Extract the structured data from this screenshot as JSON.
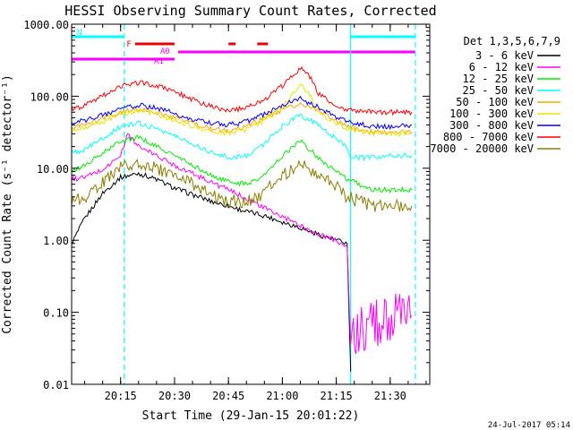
{
  "chart_data": {
    "type": "line",
    "title": "HESSI Observing Summary Count Rates, Corrected",
    "xlabel": "Start Time (29-Jan-15 20:01:22)",
    "ylabel": "Corrected Count Rate (s⁻¹ detector⁻¹)",
    "y_scale": "log",
    "ylim": [
      0.01,
      1000
    ],
    "xlim": [
      "20:01:22",
      "21:41:00"
    ],
    "x_ticks": [
      "20:15",
      "20:30",
      "20:45",
      "21:00",
      "21:15",
      "21:30"
    ],
    "y_ticks": [
      "0.01",
      "0.10",
      "1.00",
      "10.00",
      "100.00",
      "1000.00"
    ],
    "grid": false,
    "legend_position": "right",
    "legend_title": "Det 1,3,5,6,7,9",
    "timestamp": "24-Jul-2017 05:14",
    "series": [
      {
        "name": "3 - 6 keV",
        "color": "#000000",
        "x": [
          "20:01:22",
          "20:05",
          "20:10",
          "20:15",
          "20:20",
          "20:25",
          "20:30",
          "20:35",
          "20:40",
          "20:45",
          "20:50",
          "20:55",
          "21:00",
          "21:05",
          "21:10",
          "21:15",
          "21:18",
          "21:19"
        ],
        "y": [
          0.9,
          2.0,
          4.5,
          7.5,
          8.5,
          7.0,
          5.3,
          4.3,
          3.5,
          3.0,
          2.5,
          2.2,
          1.8,
          1.5,
          1.2,
          1.0,
          0.9,
          0.015
        ]
      },
      {
        "name": "6 - 12 keV",
        "color": "#ff00ff",
        "x": [
          "20:01:22",
          "20:05",
          "20:10",
          "20:15",
          "20:17",
          "20:20",
          "20:25",
          "20:30",
          "20:35",
          "20:40",
          "20:45",
          "20:50",
          "20:55",
          "21:00",
          "21:05",
          "21:10",
          "21:15",
          "21:18",
          "21:19",
          "21:25",
          "21:30",
          "21:36"
        ],
        "y": [
          7.0,
          7.5,
          9.5,
          15,
          30,
          20,
          15,
          11,
          8.5,
          6.5,
          5.0,
          3.8,
          2.8,
          2.1,
          1.6,
          1.2,
          1.0,
          0.8,
          0.04,
          0.07,
          0.08,
          0.09
        ]
      },
      {
        "name": "12 - 25 keV",
        "color": "#00ee00",
        "x": [
          "20:01:22",
          "20:05",
          "20:10",
          "20:15",
          "20:20",
          "20:25",
          "20:30",
          "20:35",
          "20:40",
          "20:45",
          "20:50",
          "20:55",
          "21:00",
          "21:05",
          "21:10",
          "21:15",
          "21:18",
          "21:25",
          "21:30",
          "21:36"
        ],
        "y": [
          9.0,
          11,
          16,
          24,
          27,
          20,
          15,
          11,
          8.0,
          6.5,
          6.0,
          8.0,
          15,
          24,
          14,
          9.0,
          7.0,
          5.0,
          5.0,
          5.0
        ]
      },
      {
        "name": "25 - 50 keV",
        "color": "#00ffff",
        "x": [
          "20:01:22",
          "20:05",
          "20:10",
          "20:15",
          "20:20",
          "20:25",
          "20:30",
          "20:35",
          "20:40",
          "20:45",
          "20:50",
          "20:55",
          "21:00",
          "21:05",
          "21:10",
          "21:15",
          "21:18",
          "21:19",
          "21:25",
          "21:30",
          "21:36"
        ],
        "y": [
          16,
          18,
          26,
          38,
          42,
          36,
          28,
          22,
          17,
          14,
          15,
          22,
          38,
          55,
          40,
          26,
          20,
          14,
          14,
          15,
          15
        ]
      },
      {
        "name": "50 - 100 keV",
        "color": "#ffa500",
        "x": [
          "20:01:22",
          "20:05",
          "20:10",
          "20:15",
          "20:20",
          "20:25",
          "20:30",
          "20:35",
          "20:40",
          "20:45",
          "20:50",
          "20:55",
          "21:00",
          "21:05",
          "21:10",
          "21:15",
          "21:18",
          "21:25",
          "21:30",
          "21:36"
        ],
        "y": [
          36,
          40,
          48,
          60,
          67,
          60,
          50,
          42,
          36,
          33,
          38,
          50,
          65,
          80,
          62,
          46,
          38,
          32,
          32,
          32
        ]
      },
      {
        "name": "100 - 300 keV",
        "color": "#e6e600",
        "x": [
          "20:01:22",
          "20:05",
          "20:10",
          "20:15",
          "20:20",
          "20:25",
          "20:30",
          "20:35",
          "20:40",
          "20:45",
          "20:50",
          "20:55",
          "21:00",
          "21:05",
          "21:08",
          "21:10",
          "21:15",
          "21:18",
          "21:25",
          "21:30",
          "21:36"
        ],
        "y": [
          32,
          36,
          44,
          56,
          63,
          56,
          46,
          38,
          33,
          30,
          34,
          46,
          70,
          150,
          100,
          60,
          42,
          36,
          30,
          30,
          30
        ]
      },
      {
        "name": "300 - 800 keV",
        "color": "#0000ff",
        "x": [
          "20:01:22",
          "20:05",
          "20:10",
          "20:15",
          "20:20",
          "20:25",
          "20:30",
          "20:35",
          "20:40",
          "20:45",
          "20:50",
          "20:55",
          "21:00",
          "21:05",
          "21:10",
          "21:15",
          "21:18",
          "21:25",
          "21:30",
          "21:36"
        ],
        "y": [
          42,
          46,
          55,
          68,
          75,
          68,
          58,
          48,
          42,
          40,
          44,
          56,
          75,
          92,
          70,
          52,
          44,
          38,
          38,
          40
        ]
      },
      {
        "name": "800 - 7000 keV",
        "color": "#ff0000",
        "x": [
          "20:01:22",
          "20:05",
          "20:10",
          "20:15",
          "20:20",
          "20:25",
          "20:30",
          "20:35",
          "20:40",
          "20:45",
          "20:50",
          "20:55",
          "21:00",
          "21:05",
          "21:08",
          "21:10",
          "21:15",
          "21:18",
          "21:25",
          "21:30",
          "21:36"
        ],
        "y": [
          65,
          75,
          100,
          140,
          155,
          140,
          115,
          90,
          72,
          64,
          68,
          90,
          140,
          250,
          180,
          110,
          75,
          65,
          60,
          60,
          60
        ]
      },
      {
        "name": "7000 - 20000 keV",
        "color": "#8b7d00",
        "x": [
          "20:01:22",
          "20:05",
          "20:10",
          "20:15",
          "20:20",
          "20:25",
          "20:30",
          "20:35",
          "20:40",
          "20:45",
          "20:50",
          "20:55",
          "21:00",
          "21:05",
          "21:10",
          "21:15",
          "21:18",
          "21:25",
          "21:30",
          "21:36"
        ],
        "y": [
          3.5,
          4.0,
          6.5,
          10,
          12,
          10,
          8.0,
          6.0,
          4.5,
          3.5,
          3.5,
          4.5,
          8.0,
          11,
          8.5,
          5.5,
          4.0,
          3.0,
          3.0,
          3.0
        ]
      }
    ],
    "flags": [
      {
        "label": "N",
        "color": "#00ffff",
        "segments": [
          [
            "20:01:22",
            "20:16"
          ],
          [
            "21:19",
            "21:37"
          ]
        ]
      },
      {
        "label": "F",
        "color": "#ee0000",
        "segments": [
          [
            "20:19",
            "20:30"
          ],
          [
            "20:45",
            "20:47"
          ],
          [
            "20:53",
            "20:56"
          ]
        ]
      },
      {
        "label": "A0",
        "color": "#ff00ff",
        "segments": [
          [
            "20:31",
            "21:37"
          ]
        ]
      },
      {
        "label": "A1",
        "color": "#ff00ff",
        "segments": [
          [
            "20:01:22",
            "20:30"
          ]
        ]
      }
    ],
    "vertical_markers": [
      {
        "time": "20:16",
        "color": "#00ffff",
        "style": "dashed"
      },
      {
        "time": "21:19",
        "color": "#00ffff",
        "style": "solid"
      },
      {
        "time": "21:37",
        "color": "#00ffff",
        "style": "dashed"
      }
    ]
  }
}
